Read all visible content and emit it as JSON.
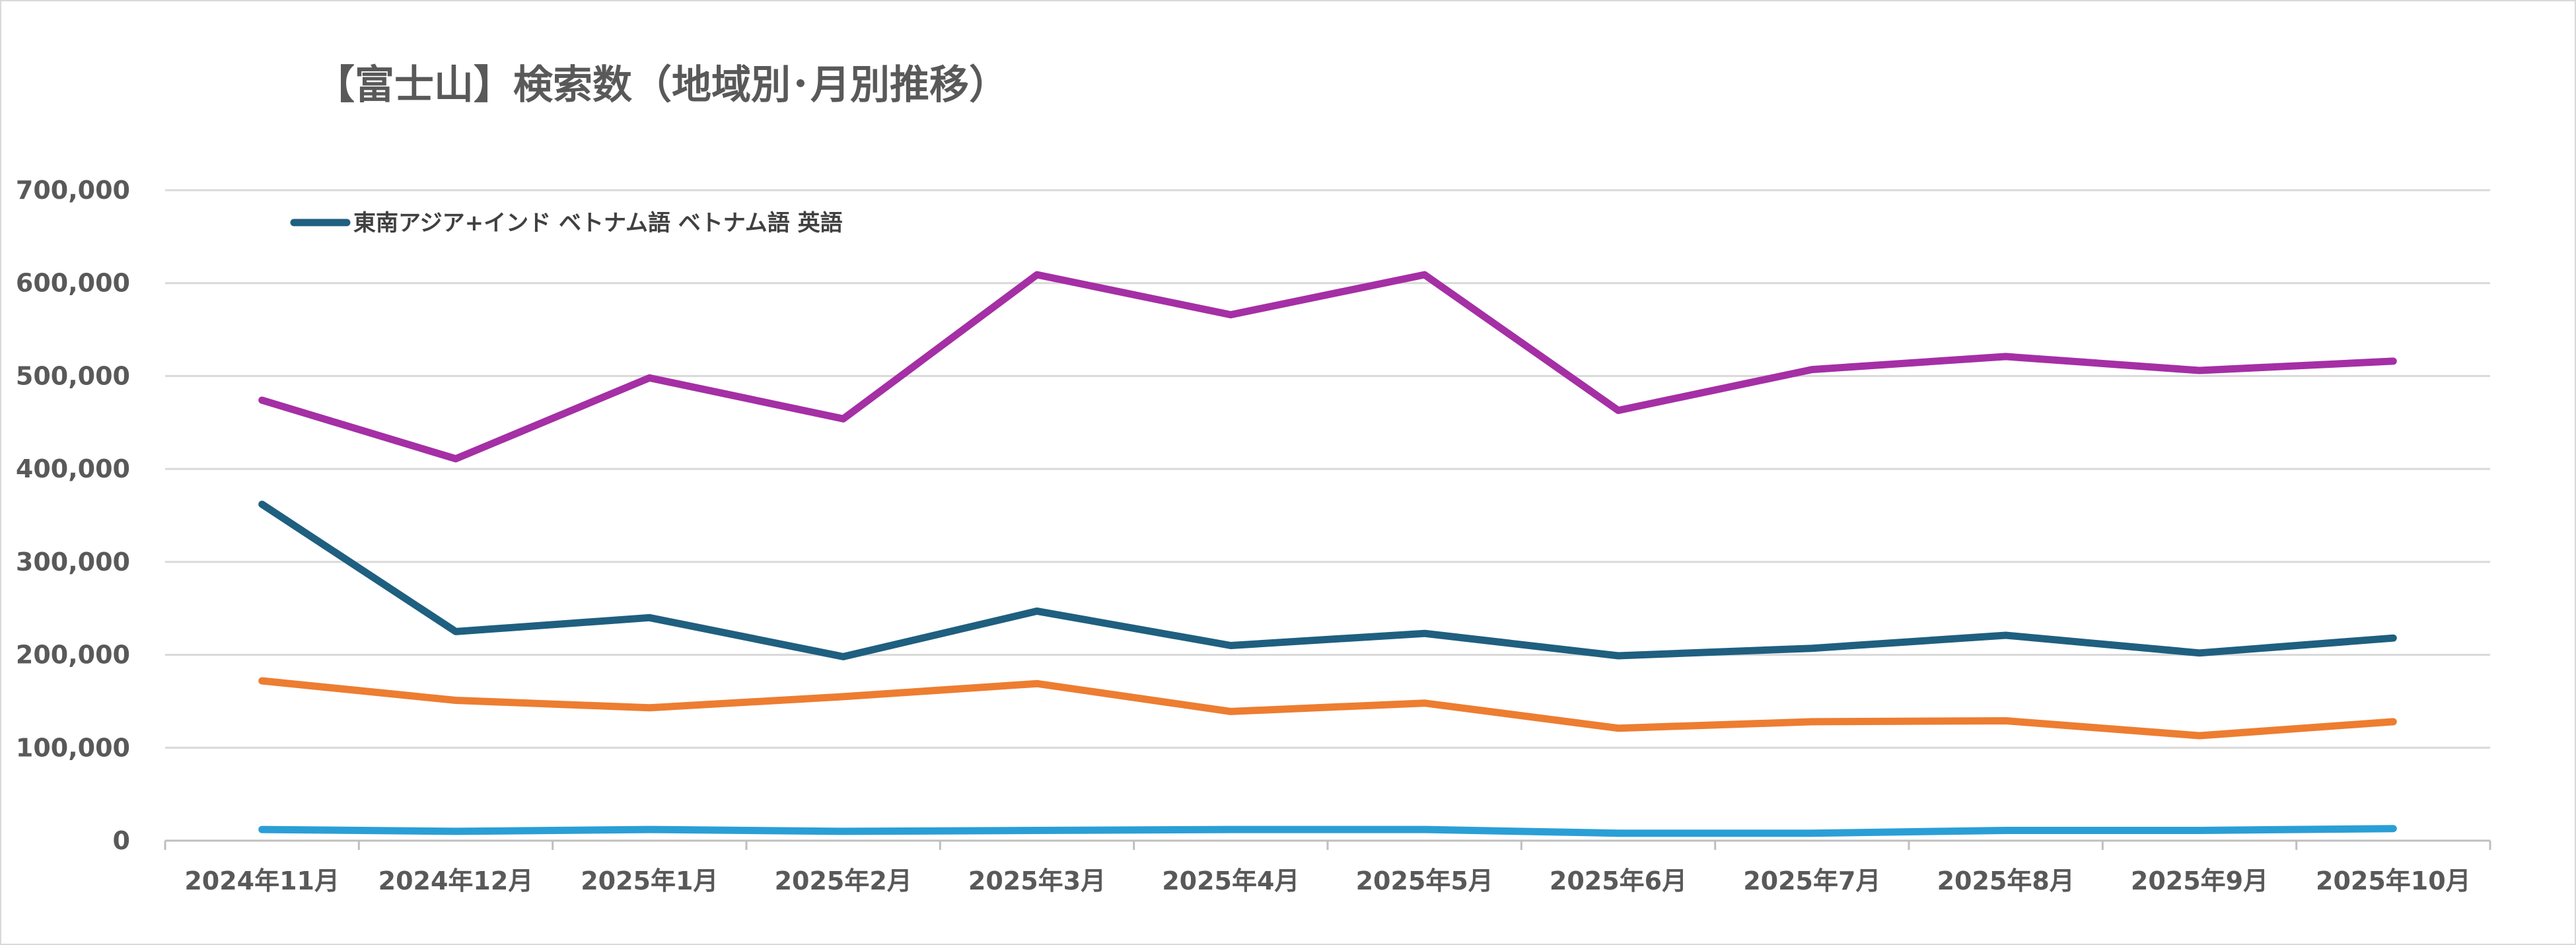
{
  "chart_data": {
    "type": "line",
    "title": "【富士山】検索数（地域別･月別推移）",
    "xlabel": "",
    "ylabel": "",
    "ylim": [
      0,
      700000
    ],
    "yticks": [
      "0",
      "100,000",
      "200,000",
      "300,000",
      "400,000",
      "500,000",
      "600,000",
      "700,000"
    ],
    "grid": true,
    "legend_position": "top-left",
    "legend_text": "東南アジア+インド ベトナム語 ベトナム語 英語",
    "categories": [
      "2024年11月",
      "2024年12月",
      "2025年1月",
      "2025年2月",
      "2025年3月",
      "2025年4月",
      "2025年5月",
      "2025年6月",
      "2025年7月",
      "2025年8月",
      "2025年9月",
      "2025年10月"
    ],
    "series": [
      {
        "color": "#1f5f7f",
        "values": [
          362000,
          225000,
          240000,
          198000,
          247000,
          210000,
          223000,
          199000,
          207000,
          221000,
          202000,
          218000
        ]
      },
      {
        "color": "#ed7d31",
        "values": [
          172000,
          151000,
          143000,
          155000,
          169000,
          139000,
          148000,
          121000,
          128000,
          129000,
          113000,
          128000
        ]
      },
      {
        "color": "#a52fa5",
        "values": [
          474000,
          411000,
          498000,
          454000,
          609000,
          566000,
          609000,
          463000,
          507000,
          521000,
          506000,
          516000
        ]
      },
      {
        "color": "#2a9fd6",
        "values": [
          12000,
          10000,
          12000,
          10000,
          11000,
          12000,
          12000,
          8000,
          8000,
          11000,
          11000,
          13000
        ]
      }
    ]
  }
}
